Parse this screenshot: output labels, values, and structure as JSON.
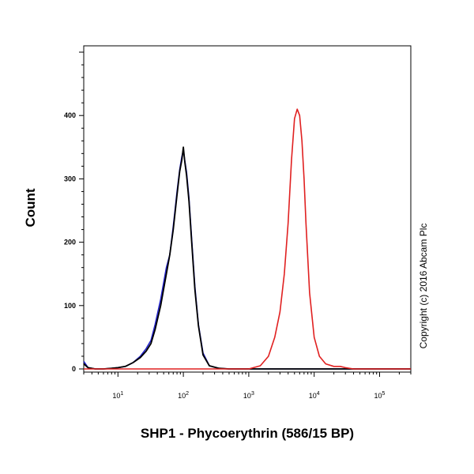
{
  "chart_data": {
    "type": "line",
    "xlabel": "SHP1 - Phycoerythrin (586/15 BP)",
    "ylabel": "Count",
    "x_scale": "log",
    "xlim": [
      3,
      300000
    ],
    "ylim": [
      -5,
      510
    ],
    "x_ticks": [
      {
        "value": 10,
        "base": "10",
        "exp": "1"
      },
      {
        "value": 100,
        "base": "10",
        "exp": "2"
      },
      {
        "value": 1000,
        "base": "10",
        "exp": "3"
      },
      {
        "value": 10000,
        "base": "10",
        "exp": "4"
      },
      {
        "value": 100000,
        "base": "10",
        "exp": "5"
      }
    ],
    "y_ticks": [
      0,
      100,
      200,
      300,
      400
    ],
    "grid": false,
    "series": [
      {
        "color": "#2020c8",
        "x": [
          3,
          3.5,
          4.5,
          6,
          8,
          10,
          13,
          17,
          22,
          27,
          32,
          37,
          45,
          55,
          62,
          70,
          80,
          88,
          95,
          100,
          105,
          112,
          122,
          135,
          150,
          170,
          200,
          250,
          350,
          500,
          1000,
          10000,
          300000
        ],
        "y": [
          12,
          2,
          0,
          0,
          1,
          2,
          4,
          10,
          20,
          32,
          45,
          70,
          110,
          160,
          180,
          225,
          280,
          315,
          335,
          345,
          330,
          310,
          270,
          200,
          130,
          70,
          25,
          5,
          1,
          0,
          0,
          0,
          0
        ]
      },
      {
        "color": "#000000",
        "x": [
          3,
          3.5,
          4.5,
          6,
          8,
          10,
          13,
          17,
          22,
          27,
          32,
          37,
          45,
          55,
          62,
          70,
          80,
          88,
          95,
          100,
          105,
          112,
          122,
          135,
          150,
          170,
          200,
          250,
          350,
          500,
          1000,
          10000,
          300000
        ],
        "y": [
          8,
          2,
          0,
          0,
          1,
          2,
          4,
          10,
          18,
          28,
          40,
          62,
          100,
          150,
          180,
          220,
          275,
          312,
          330,
          350,
          328,
          305,
          265,
          195,
          125,
          68,
          22,
          5,
          1,
          0,
          0,
          0,
          0
        ]
      },
      {
        "color": "#e02020",
        "x": [
          3,
          100,
          1000,
          1500,
          2000,
          2500,
          3000,
          3500,
          4000,
          4500,
          5000,
          5500,
          6000,
          6500,
          7000,
          7500,
          8500,
          10000,
          12000,
          15000,
          20000,
          25000,
          30000,
          40000,
          300000
        ],
        "y": [
          0,
          0,
          0,
          5,
          20,
          50,
          90,
          150,
          230,
          330,
          395,
          410,
          400,
          360,
          300,
          230,
          120,
          50,
          20,
          8,
          4,
          4,
          2,
          0,
          0
        ]
      }
    ]
  },
  "copyright": "Copyright (c) 2016 Abcam Plc"
}
